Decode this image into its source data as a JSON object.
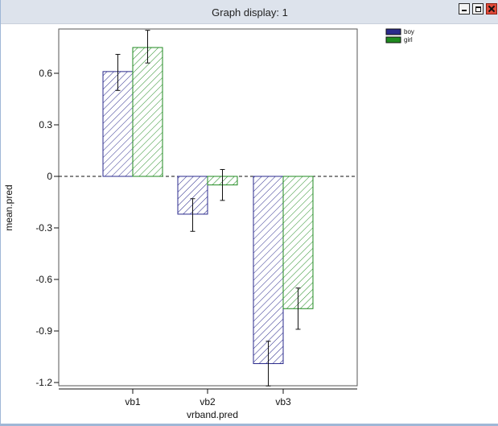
{
  "window": {
    "title": "Graph display: 1"
  },
  "chart_data": {
    "type": "bar",
    "categories": [
      "vb1",
      "vb2",
      "vb3"
    ],
    "series": [
      {
        "name": "boy",
        "values": [
          0.61,
          -0.22,
          -1.09
        ],
        "err_low": [
          0.5,
          -0.32,
          -1.22
        ],
        "err_high": [
          0.71,
          -0.13,
          -0.96
        ],
        "color": "#2a2a8c"
      },
      {
        "name": "girl",
        "values": [
          0.75,
          -0.05,
          -0.77
        ],
        "err_low": [
          0.66,
          -0.14,
          -0.89
        ],
        "err_high": [
          0.85,
          0.04,
          -0.65
        ],
        "color": "#1f8a1f"
      }
    ],
    "xlabel": "vrband.pred",
    "ylabel": "mean.pred",
    "yticks": [
      0.6,
      0.3,
      0,
      -0.3,
      -0.6,
      -0.9,
      -1.2
    ],
    "ytick_labels": [
      "0.6",
      "0.3",
      "0",
      "-0.3",
      "-0.6",
      "-0.9",
      "-1.2"
    ],
    "ylim": [
      -1.23,
      0.88
    ],
    "reference_line": 0,
    "legend_position": "top-right",
    "bar_fill": "diagonal-hatch"
  }
}
